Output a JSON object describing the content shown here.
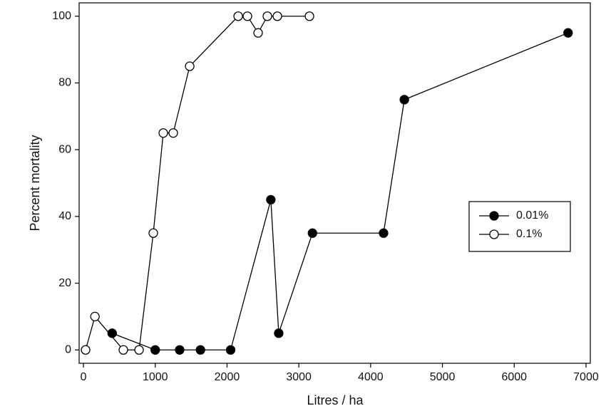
{
  "chart_data": {
    "type": "line",
    "xlabel": "Litres / ha",
    "ylabel": "Percent mortality",
    "xlim": [
      -60,
      7060
    ],
    "ylim": [
      -4,
      104
    ],
    "xticks": [
      0,
      1000,
      2000,
      3000,
      4000,
      5000,
      6000,
      7000
    ],
    "yticks": [
      0,
      20,
      40,
      60,
      80,
      100
    ],
    "legend": "right",
    "grid": false,
    "series": [
      {
        "name": "0.01%",
        "color": "#000000",
        "marker": "filled-circle",
        "x": [
          400,
          1000,
          1340,
          1630,
          2050,
          2610,
          2720,
          3190,
          4180,
          4470,
          6750
        ],
        "values": [
          5,
          0,
          0,
          0,
          0,
          45,
          5,
          35,
          35,
          75,
          95
        ]
      },
      {
        "name": "0.1%",
        "color": "#000000",
        "marker": "open-circle",
        "x": [
          30,
          160,
          556,
          775,
          973,
          1112,
          1251,
          1480,
          2155,
          2284,
          2433,
          2562,
          2701,
          3148
        ],
        "values": [
          0,
          10,
          0,
          0,
          35,
          65,
          65,
          85,
          100,
          100,
          95,
          100,
          100,
          100
        ]
      }
    ]
  }
}
